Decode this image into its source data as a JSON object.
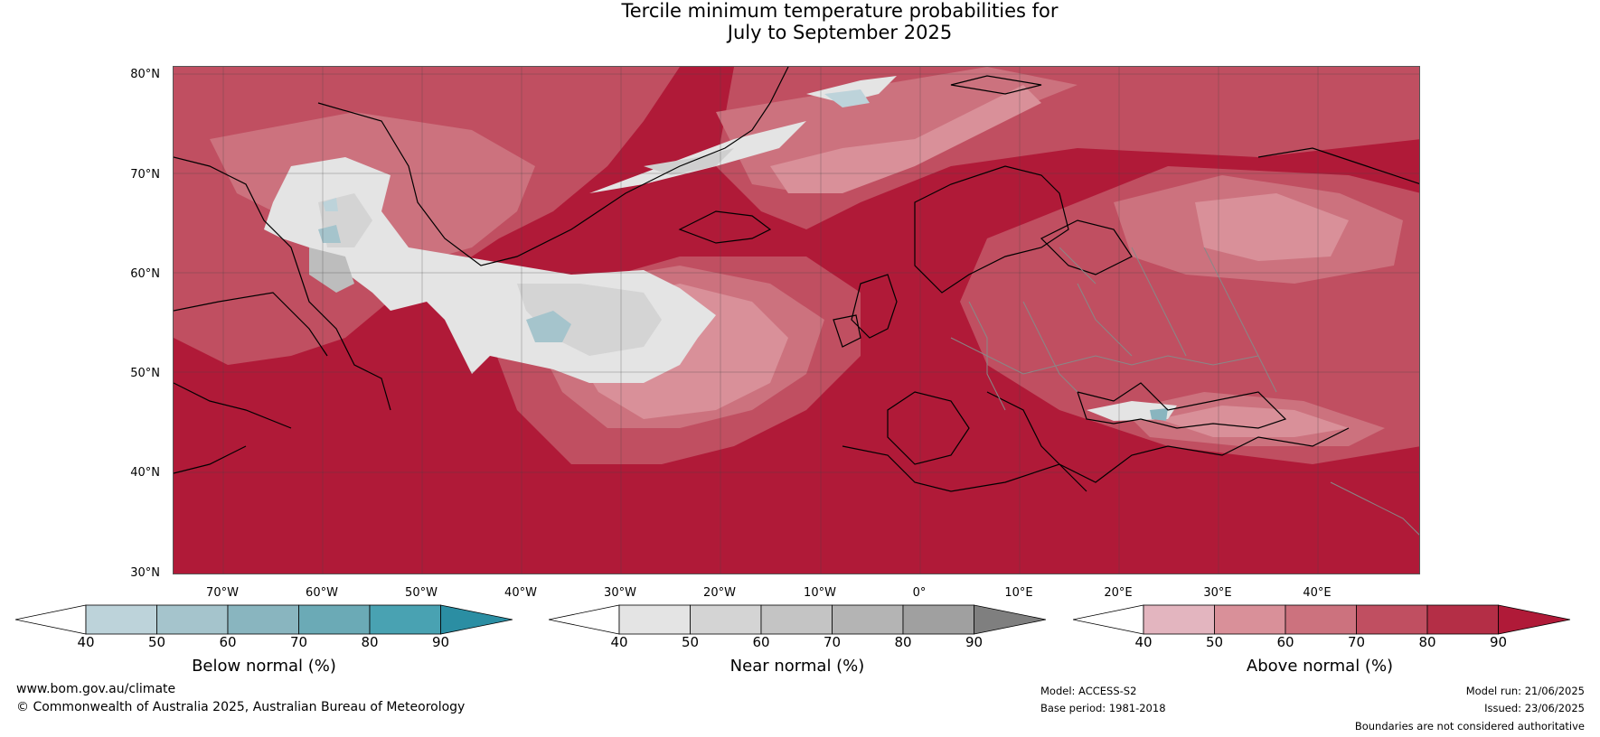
{
  "title": {
    "line1": "Tercile minimum temperature probabilities for",
    "line2": "July to September 2025"
  },
  "map": {
    "lat_labels": [
      "80°N",
      "70°N",
      "60°N",
      "50°N",
      "40°N",
      "30°N"
    ],
    "lon_labels": [
      "70°W",
      "60°W",
      "50°W",
      "40°W",
      "30°W",
      "20°W",
      "10°W",
      "0°",
      "10°E",
      "20°E",
      "30°E",
      "40°E"
    ],
    "background_color": "#b01a38"
  },
  "colorbars": [
    {
      "title": "Below normal (%)",
      "ticks": [
        "40",
        "50",
        "60",
        "70",
        "80",
        "90"
      ],
      "colors": [
        "#ffffff",
        "#bdd3da",
        "#a5c4cc",
        "#89b5bf",
        "#6baab6",
        "#49a2b2",
        "#2b8ea3"
      ]
    },
    {
      "title": "Near normal (%)",
      "ticks": [
        "40",
        "50",
        "60",
        "70",
        "80",
        "90"
      ],
      "colors": [
        "#ffffff",
        "#e4e4e4",
        "#d4d4d4",
        "#c4c4c4",
        "#b4b4b4",
        "#a0a0a0",
        "#7f7f7f"
      ]
    },
    {
      "title": "Above normal (%)",
      "ticks": [
        "40",
        "50",
        "60",
        "70",
        "80",
        "90"
      ],
      "colors": [
        "#ffffff",
        "#e3b5bf",
        "#d99099",
        "#cc727e",
        "#c04f61",
        "#b42e46",
        "#b01a38"
      ]
    }
  ],
  "footer": {
    "website": "www.bom.gov.au/climate",
    "copyright": "© Commonwealth of Australia 2025, Australian Bureau of Meteorology",
    "model": "Model: ACCESS-S2",
    "base_period": "Base period: 1981-2018",
    "model_run": "Model run: 21/06/2025",
    "issued": "Issued: 23/06/2025",
    "disclaimer": "Boundaries are not considered authoritative"
  }
}
